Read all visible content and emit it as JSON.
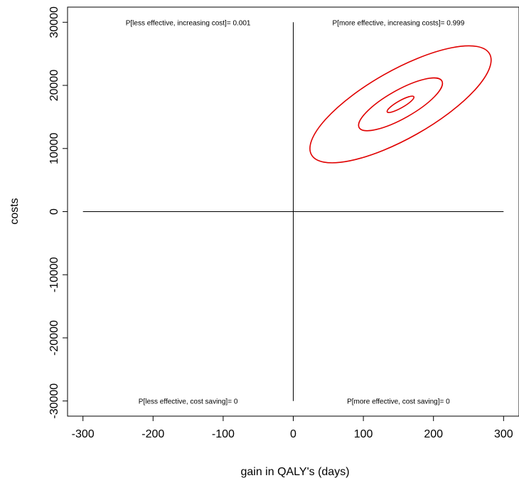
{
  "chart_data": {
    "type": "contour",
    "xlabel": "gain in QALY's (days)",
    "ylabel": "costs",
    "xlim": [
      -322,
      322
    ],
    "ylim": [
      -32400,
      32400
    ],
    "xticks": [
      -300,
      -200,
      -100,
      0,
      100,
      200,
      300
    ],
    "yticks": [
      -30000,
      -20000,
      -10000,
      0,
      10000,
      20000,
      30000
    ],
    "grid": false,
    "axis_lines": {
      "horizontal": {
        "y": 0,
        "x_from": -300,
        "x_to": 300
      },
      "vertical": {
        "x": 0,
        "y_from": -30000,
        "y_to": 30000
      }
    },
    "series": [
      {
        "color": "#e00000",
        "contours": [
          {
            "center": [
              153,
              17000
            ],
            "major_end": [
              172,
              18200
            ],
            "minor_end": [
              150,
              17450
            ]
          },
          {
            "center": [
              153,
              17000
            ],
            "major_end": [
              212,
              20700
            ],
            "minor_end": [
              139,
              18600
            ]
          },
          {
            "center": [
              153,
              17000
            ],
            "major_end": [
              280,
              25000
            ],
            "minor_end": [
              124,
              21300
            ]
          }
        ]
      }
    ],
    "annotations": [
      {
        "text": "P[less effective, increasing cost]=  0.001",
        "x": -150,
        "y": 30000
      },
      {
        "text": "P[more effective, increasing costs]=  0.999",
        "x": 150,
        "y": 30000
      },
      {
        "text": "P[less effective, cost saving]=  0",
        "x": -150,
        "y": -30000
      },
      {
        "text": "P[more effective, cost saving]=  0",
        "x": 150,
        "y": -30000
      }
    ]
  }
}
